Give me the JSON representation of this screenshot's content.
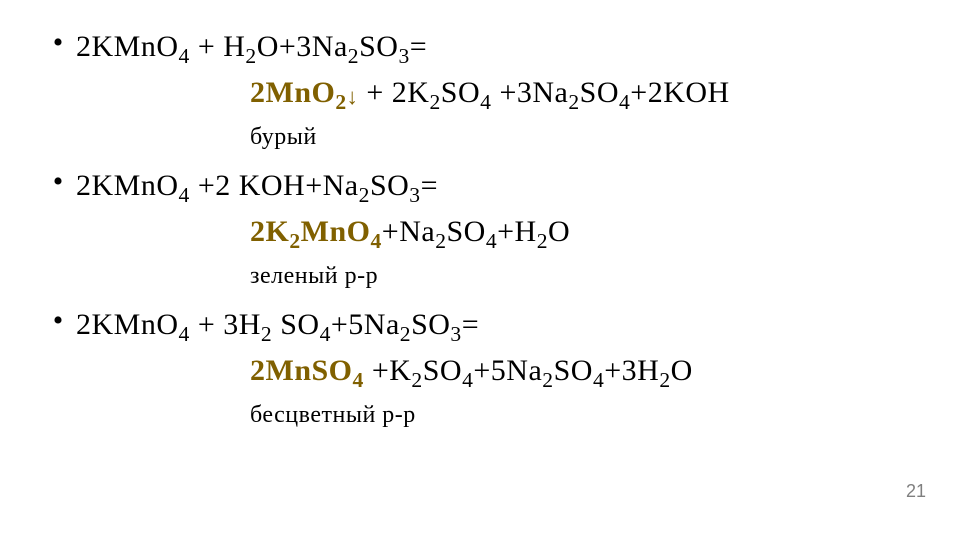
{
  "typography": {
    "body_font": "Times New Roman",
    "eq_fontsize_pt": 30,
    "note_fontsize_pt": 24,
    "pagenum_fontsize_pt": 18,
    "product_color": "#806000",
    "text_color": "#000000",
    "pagenum_color": "#7f7f7f",
    "background_color": "#ffffff"
  },
  "equations": [
    {
      "bullet": "•",
      "reactants": "2KMnO{4} + H{2}O+3Na{2}SO{3}=",
      "products_prefix": "2MnO{2}↓",
      "products_rest": " + 2K{2}SO{4} +3Na{2}SO{4}+2KOH",
      "note": "бурый"
    },
    {
      "bullet": "•",
      "reactants": "2KMnO{4} +2 KOH+Na{2}SO{3}=",
      "products_prefix": "2K{2}MnO{4}",
      "products_rest": "+Na{2}SO{4}+H{2}O",
      "note": "зеленый р-р"
    },
    {
      "bullet": "•",
      "reactants": "2KMnO{4} + 3H{2} SO{4}+5Na{2}SO{3}=",
      "products_prefix": "2MnSO{4}",
      "products_rest": " +K{2}SO{4}+5Na{2}SO{4}+3H{2}O",
      "note": "бесцветный р-р"
    }
  ],
  "page_number": "21"
}
